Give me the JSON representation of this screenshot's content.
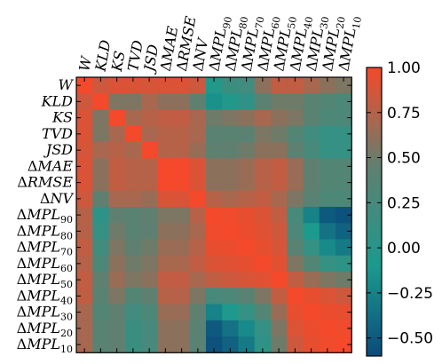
{
  "chart_data": {
    "type": "heatmap",
    "title": "",
    "rows": [
      {
        "base": "W",
        "delta": false,
        "sub": ""
      },
      {
        "base": "KLD",
        "delta": false,
        "sub": ""
      },
      {
        "base": "KS",
        "delta": false,
        "sub": ""
      },
      {
        "base": "TVD",
        "delta": false,
        "sub": ""
      },
      {
        "base": "JSD",
        "delta": false,
        "sub": ""
      },
      {
        "base": "MAE",
        "delta": true,
        "sub": ""
      },
      {
        "base": "RMSE",
        "delta": true,
        "sub": ""
      },
      {
        "base": "NV",
        "delta": true,
        "sub": ""
      },
      {
        "base": "MPL",
        "delta": true,
        "sub": "90"
      },
      {
        "base": "MPL",
        "delta": true,
        "sub": "80"
      },
      {
        "base": "MPL",
        "delta": true,
        "sub": "70"
      },
      {
        "base": "MPL",
        "delta": true,
        "sub": "60"
      },
      {
        "base": "MPL",
        "delta": true,
        "sub": "50"
      },
      {
        "base": "MPL",
        "delta": true,
        "sub": "40"
      },
      {
        "base": "MPL",
        "delta": true,
        "sub": "30"
      },
      {
        "base": "MPL",
        "delta": true,
        "sub": "20"
      },
      {
        "base": "MPL",
        "delta": true,
        "sub": "10"
      }
    ],
    "colorbar": {
      "min": -0.6,
      "max": 1.0,
      "ticks": [
        1.0,
        0.75,
        0.5,
        0.25,
        0.0,
        -0.25,
        -0.5
      ],
      "tick_labels": [
        "1.00",
        "0.75",
        "0.50",
        "0.25",
        "0.00",
        "−0.25",
        "−0.50"
      ],
      "colors": [
        "#0b4a7a",
        "#1c9a8e",
        "#5f8070",
        "#a8674f",
        "#f4492a"
      ],
      "color_stops": [
        -0.6,
        -0.1,
        0.45,
        0.7,
        1.0
      ]
    },
    "matrix": [
      [
        1.0,
        0.85,
        0.9,
        0.9,
        0.88,
        0.9,
        0.9,
        0.85,
        -0.05,
        0.15,
        0.2,
        0.6,
        0.8,
        0.8,
        0.7,
        0.6,
        0.55
      ],
      [
        0.85,
        1.0,
        0.55,
        0.55,
        0.7,
        0.6,
        0.6,
        0.45,
        -0.15,
        -0.05,
        0.05,
        0.4,
        0.5,
        0.5,
        0.4,
        0.35,
        0.3
      ],
      [
        0.9,
        0.55,
        1.0,
        0.7,
        0.75,
        0.8,
        0.8,
        0.7,
        0.5,
        0.55,
        0.6,
        0.7,
        0.6,
        0.55,
        0.4,
        0.3,
        0.3
      ],
      [
        0.9,
        0.55,
        0.7,
        1.0,
        0.7,
        0.75,
        0.75,
        0.7,
        0.4,
        0.4,
        0.4,
        0.55,
        0.5,
        0.35,
        0.2,
        0.1,
        0.1
      ],
      [
        0.88,
        0.7,
        0.75,
        0.7,
        1.0,
        0.75,
        0.75,
        0.65,
        0.45,
        0.45,
        0.5,
        0.6,
        0.6,
        0.45,
        0.25,
        0.1,
        0.1
      ],
      [
        0.9,
        0.6,
        0.8,
        0.75,
        0.75,
        1.0,
        1.0,
        0.9,
        0.6,
        0.6,
        0.65,
        0.75,
        0.8,
        0.65,
        0.45,
        0.35,
        0.35
      ],
      [
        0.9,
        0.6,
        0.8,
        0.75,
        0.75,
        1.0,
        1.0,
        0.9,
        0.6,
        0.6,
        0.65,
        0.75,
        0.8,
        0.65,
        0.45,
        0.35,
        0.35
      ],
      [
        0.85,
        0.45,
        0.7,
        0.7,
        0.65,
        0.9,
        0.9,
        1.0,
        0.75,
        0.7,
        0.75,
        0.8,
        0.7,
        0.55,
        0.4,
        0.3,
        0.3
      ],
      [
        0.75,
        0.05,
        0.45,
        0.4,
        0.45,
        0.55,
        0.55,
        0.75,
        1.0,
        0.98,
        0.95,
        0.9,
        0.8,
        0.25,
        -0.25,
        -0.5,
        -0.55
      ],
      [
        0.75,
        0.1,
        0.5,
        0.4,
        0.45,
        0.6,
        0.6,
        0.7,
        0.98,
        1.0,
        0.97,
        0.92,
        0.85,
        0.3,
        -0.1,
        -0.35,
        -0.45
      ],
      [
        0.8,
        0.2,
        0.55,
        0.45,
        0.5,
        0.65,
        0.65,
        0.75,
        0.95,
        0.97,
        1.0,
        0.95,
        0.88,
        0.4,
        0.1,
        -0.2,
        -0.3
      ],
      [
        0.75,
        0.3,
        0.6,
        0.5,
        0.55,
        0.7,
        0.7,
        0.8,
        0.9,
        0.92,
        0.95,
        1.0,
        0.92,
        0.55,
        0.35,
        0.1,
        0.05
      ],
      [
        0.8,
        0.45,
        0.65,
        0.55,
        0.6,
        0.8,
        0.8,
        0.7,
        0.8,
        0.85,
        0.88,
        0.92,
        1.0,
        0.8,
        0.65,
        0.55,
        0.5
      ],
      [
        0.8,
        0.4,
        0.55,
        0.35,
        0.45,
        0.75,
        0.75,
        0.55,
        0.25,
        0.3,
        0.4,
        0.55,
        0.8,
        1.0,
        0.95,
        0.9,
        0.85
      ],
      [
        0.7,
        0.35,
        0.45,
        0.2,
        0.3,
        0.65,
        0.65,
        0.45,
        -0.25,
        -0.1,
        0.1,
        0.35,
        0.65,
        0.95,
        1.0,
        0.97,
        0.95
      ],
      [
        0.7,
        0.4,
        0.45,
        0.15,
        0.25,
        0.6,
        0.6,
        0.4,
        -0.5,
        -0.35,
        -0.2,
        0.1,
        0.55,
        0.9,
        0.97,
        1.0,
        0.98
      ],
      [
        0.7,
        0.4,
        0.45,
        0.15,
        0.25,
        0.6,
        0.6,
        0.4,
        -0.55,
        -0.45,
        -0.3,
        0.05,
        0.5,
        0.85,
        0.95,
        0.98,
        1.0
      ]
    ]
  }
}
